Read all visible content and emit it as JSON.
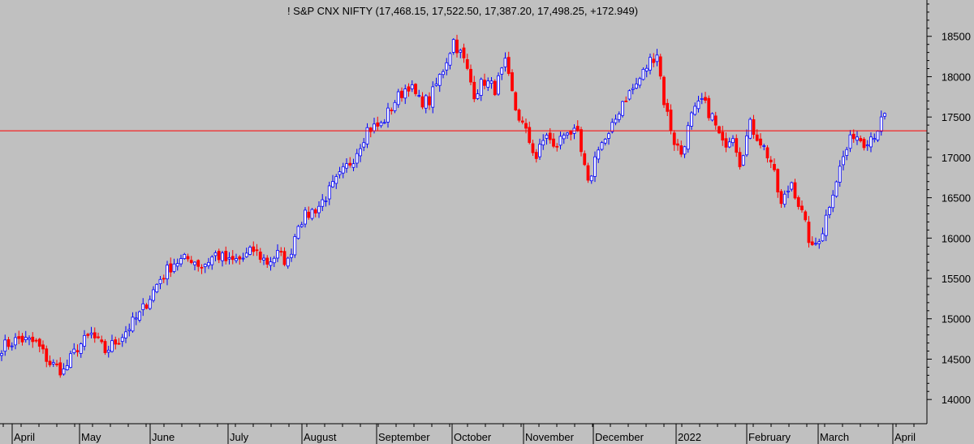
{
  "colors": {
    "background": "#c0c0c0",
    "up": "#0000ff",
    "down": "#ff0000",
    "reference_line": "#ff0000",
    "axis": "#000000"
  },
  "chart_data": {
    "type": "candlestick",
    "title": "! S&P CNX NIFTY (17,468.15, 17,522.50, 17,387.20, 17,498.25, +172.949)",
    "y_ticks": [
      "14000",
      "14500",
      "15000",
      "15500",
      "16000",
      "16500",
      "17000",
      "17500",
      "18000",
      "18500"
    ],
    "ylim": [
      13700,
      18950
    ],
    "month_labels": [
      "April",
      "May",
      "June",
      "July",
      "August",
      "September",
      "October",
      "November",
      "December",
      "2022",
      "February",
      "March",
      "April"
    ],
    "reference_line": 17330,
    "grid": false,
    "series": [
      {
        "anchors": [
          [
            0,
            14650
          ],
          [
            5,
            14750
          ],
          [
            10,
            14700
          ],
          [
            14,
            14450
          ],
          [
            18,
            14350
          ],
          [
            22,
            14650
          ],
          [
            26,
            14800
          ],
          [
            30,
            14600
          ],
          [
            34,
            14750
          ],
          [
            40,
            15050
          ],
          [
            46,
            15500
          ],
          [
            50,
            15700
          ],
          [
            55,
            15750
          ],
          [
            58,
            15650
          ],
          [
            62,
            15800
          ],
          [
            66,
            15700
          ],
          [
            70,
            15750
          ],
          [
            73,
            15850
          ],
          [
            77,
            15700
          ],
          [
            80,
            15800
          ],
          [
            83,
            15700
          ],
          [
            86,
            16200
          ],
          [
            92,
            16400
          ],
          [
            97,
            16700
          ],
          [
            102,
            17000
          ],
          [
            106,
            17350
          ],
          [
            110,
            17400
          ],
          [
            114,
            17700
          ],
          [
            118,
            17900
          ],
          [
            121,
            17700
          ],
          [
            124,
            17700
          ],
          [
            128,
            18100
          ],
          [
            131,
            18450
          ],
          [
            134,
            18200
          ],
          [
            137,
            17800
          ],
          [
            140,
            17950
          ],
          [
            143,
            17850
          ],
          [
            146,
            18150
          ],
          [
            149,
            17600
          ],
          [
            152,
            17300
          ],
          [
            155,
            17000
          ],
          [
            158,
            17300
          ],
          [
            160,
            17100
          ],
          [
            164,
            17350
          ],
          [
            167,
            17250
          ],
          [
            170,
            16650
          ],
          [
            173,
            17150
          ],
          [
            176,
            17250
          ],
          [
            180,
            17700
          ],
          [
            184,
            17900
          ],
          [
            188,
            18200
          ],
          [
            190,
            18300
          ],
          [
            192,
            17700
          ],
          [
            195,
            17200
          ],
          [
            197,
            17050
          ],
          [
            200,
            17500
          ],
          [
            203,
            17700
          ],
          [
            206,
            17500
          ],
          [
            209,
            17150
          ],
          [
            212,
            17300
          ],
          [
            214,
            16950
          ],
          [
            217,
            17400
          ],
          [
            220,
            17200
          ],
          [
            223,
            16950
          ],
          [
            226,
            16400
          ],
          [
            229,
            16700
          ],
          [
            232,
            16300
          ],
          [
            235,
            15850
          ],
          [
            238,
            16100
          ],
          [
            241,
            16600
          ],
          [
            244,
            17000
          ],
          [
            247,
            17300
          ],
          [
            250,
            17200
          ],
          [
            253,
            17300
          ],
          [
            256,
            17500
          ]
        ]
      }
    ]
  }
}
